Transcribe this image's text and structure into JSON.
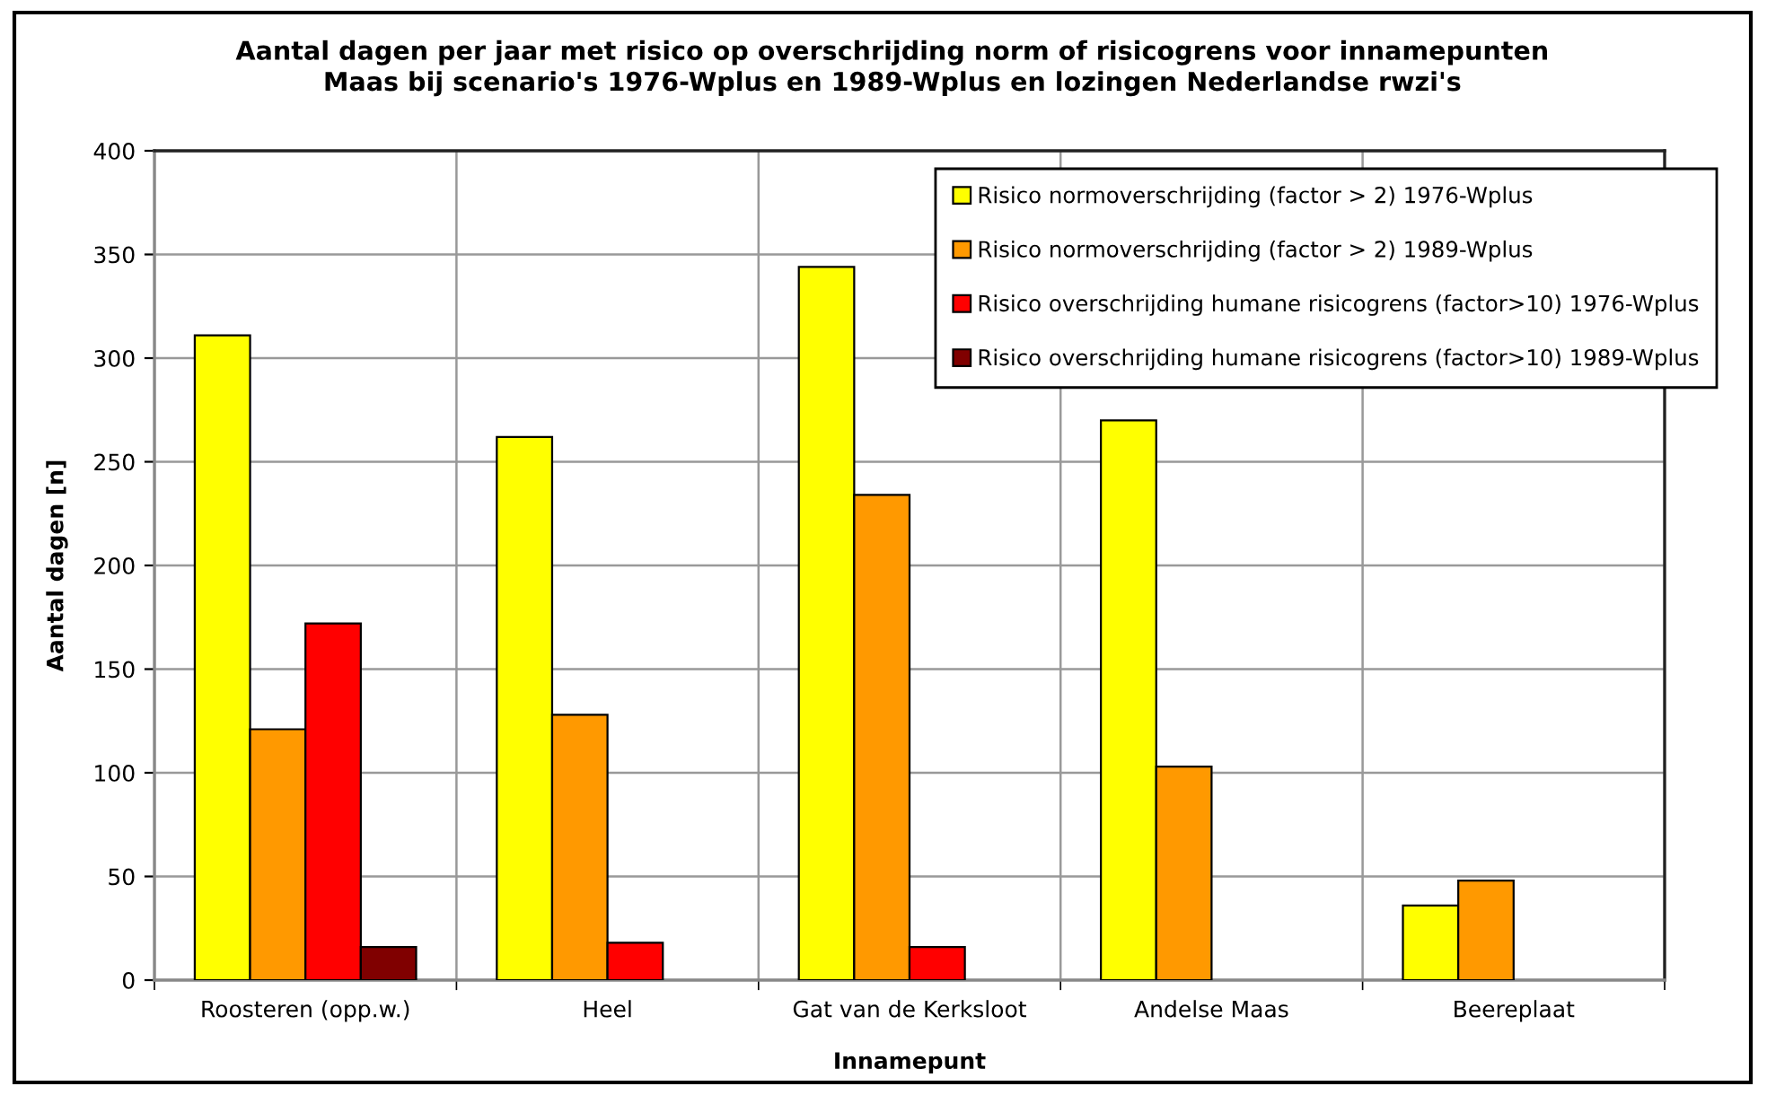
{
  "chart_data": {
    "type": "bar",
    "title": "Aantal dagen per jaar met risico op overschrijding norm of risicogrens voor innamepunten\nMaas bij scenario's 1976-Wplus en 1989-Wplus en lozingen Nederlandse rwzi's",
    "xlabel": "Innamepunt",
    "ylabel": "Aantal dagen [n]",
    "categories": [
      "Roosteren (opp.w.)",
      "Heel",
      "Gat van de Kerksloot",
      "Andelse Maas",
      "Beereplaat"
    ],
    "series": [
      {
        "name": "Risico normoverschrijding (factor > 2) 1976-Wplus",
        "color": "#ffff00",
        "values": [
          311,
          262,
          344,
          270,
          36
        ]
      },
      {
        "name": "Risico normoverschrijding (factor > 2) 1989-Wplus",
        "color": "#ff9900",
        "values": [
          121,
          128,
          234,
          103,
          48
        ]
      },
      {
        "name": "Risico overschrijding humane risicogrens (factor>10) 1976-Wplus",
        "color": "#ff0000",
        "values": [
          172,
          18,
          16,
          0,
          0
        ]
      },
      {
        "name": "Risico overschrijding humane risicogrens (factor>10) 1989-Wplus",
        "color": "#800000",
        "values": [
          16,
          0,
          0,
          0,
          0
        ]
      }
    ],
    "ylim": [
      0,
      400
    ],
    "yticks": [
      0,
      50,
      100,
      150,
      200,
      250,
      300,
      350,
      400
    ],
    "grid": true,
    "legend": "top right"
  }
}
